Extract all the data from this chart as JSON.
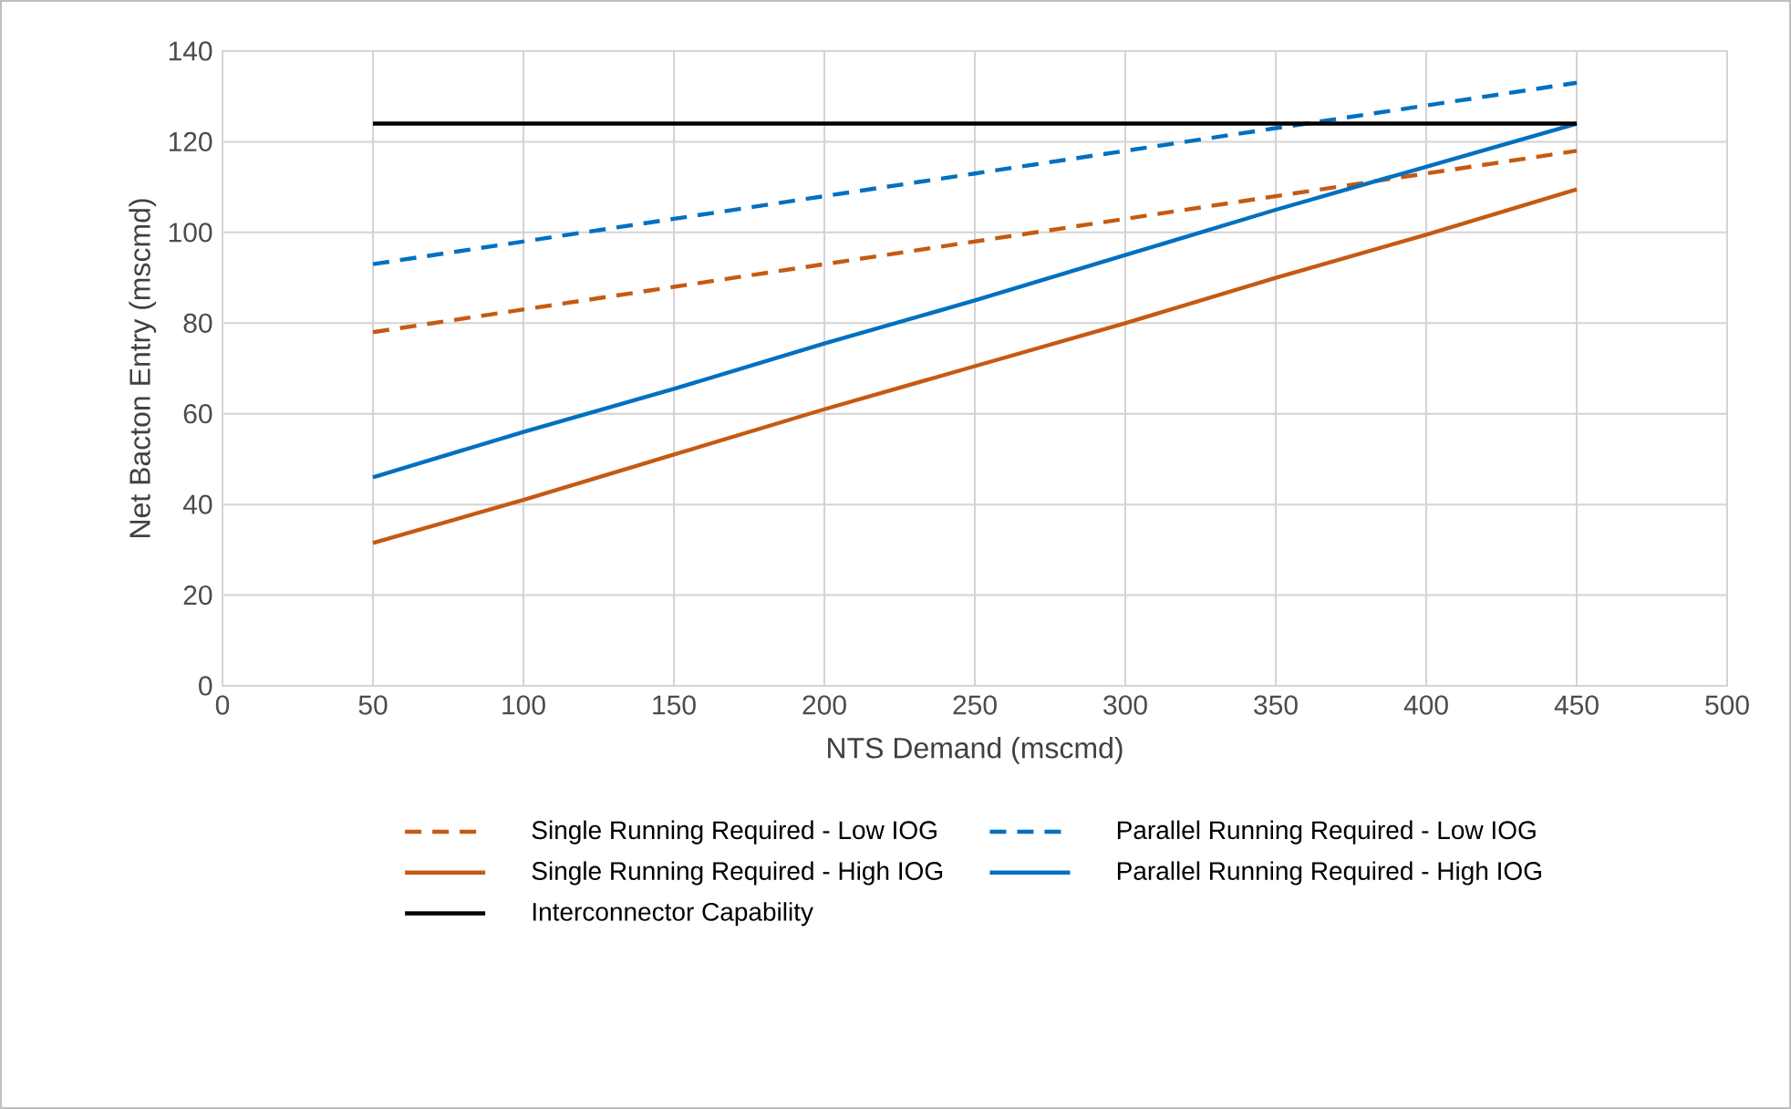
{
  "chart_data": {
    "type": "line",
    "xlabel": "NTS Demand (mscmd)",
    "ylabel": "Net Bacton Entry (mscmd)",
    "xlim": [
      0,
      500
    ],
    "xticks": [
      0,
      50,
      100,
      150,
      200,
      250,
      300,
      350,
      400,
      450,
      500
    ],
    "ylim": [
      0,
      140
    ],
    "yticks": [
      0,
      20,
      40,
      60,
      80,
      100,
      120,
      140
    ],
    "grid": true,
    "legend": "bottom",
    "series": [
      {
        "name": "Single Running Required - Low IOG",
        "color": "#c55a11",
        "line_style": "dashed",
        "x": [
          50,
          100,
          150,
          200,
          250,
          300,
          350,
          400,
          450
        ],
        "values": [
          78,
          83,
          88,
          93,
          98,
          103,
          108,
          113,
          118
        ]
      },
      {
        "name": "Parallel Running Required - Low IOG",
        "color": "#0070c0",
        "line_style": "dashed",
        "x": [
          50,
          100,
          150,
          200,
          250,
          300,
          350,
          400,
          450
        ],
        "values": [
          93,
          98,
          103,
          108,
          113,
          118,
          123,
          128,
          133
        ]
      },
      {
        "name": "Single Running Required - High IOG",
        "color": "#c55a11",
        "line_style": "solid",
        "x": [
          50,
          100,
          150,
          200,
          250,
          300,
          350,
          400,
          450
        ],
        "values": [
          31.5,
          41,
          51,
          61,
          70.5,
          80,
          90,
          99.5,
          109.5
        ]
      },
      {
        "name": "Parallel Running Required - High IOG",
        "color": "#0070c0",
        "line_style": "solid",
        "x": [
          50,
          100,
          150,
          200,
          250,
          300,
          350,
          400,
          450
        ],
        "values": [
          46,
          56,
          65.5,
          75.5,
          85,
          95,
          105,
          114.5,
          124
        ]
      },
      {
        "name": "Interconnector Capability",
        "color": "#000000",
        "line_style": "solid",
        "x": [
          50,
          450
        ],
        "values": [
          124,
          124
        ]
      }
    ]
  }
}
